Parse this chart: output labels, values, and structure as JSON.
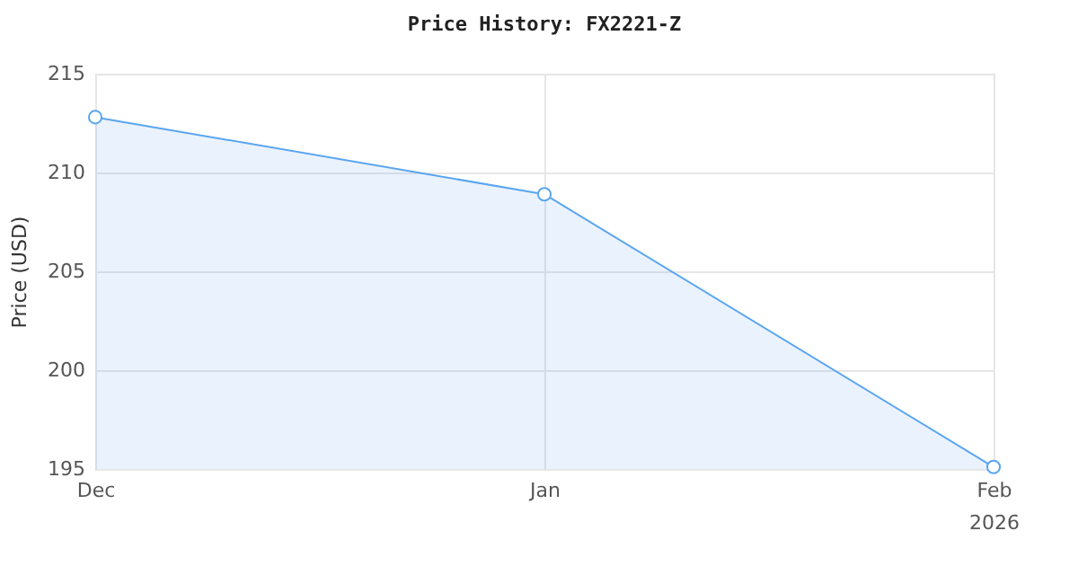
{
  "chart_data": {
    "type": "area",
    "title": "Price History: FX2221-Z",
    "ylabel": "Price (USD)",
    "x": [
      "2025-12-01",
      "2026-01-01",
      "2026-02-01"
    ],
    "series": [
      {
        "color": "#5aa5f0",
        "values": [
          212.8,
          208.9,
          195.1
        ]
      }
    ],
    "xlim": [
      "2025-12-01",
      "2026-02-01"
    ],
    "xticks": [
      {
        "value": "2025-12-01",
        "label": "Dec"
      },
      {
        "value": "2026-01-01",
        "label": "Jan"
      },
      {
        "value": "2026-02-01",
        "label": "Feb\n2026"
      }
    ],
    "ylim": [
      195,
      215
    ],
    "yticks": [
      195,
      200,
      205,
      210,
      215
    ],
    "grid": true,
    "marker": "circle",
    "line_style": "solid"
  }
}
